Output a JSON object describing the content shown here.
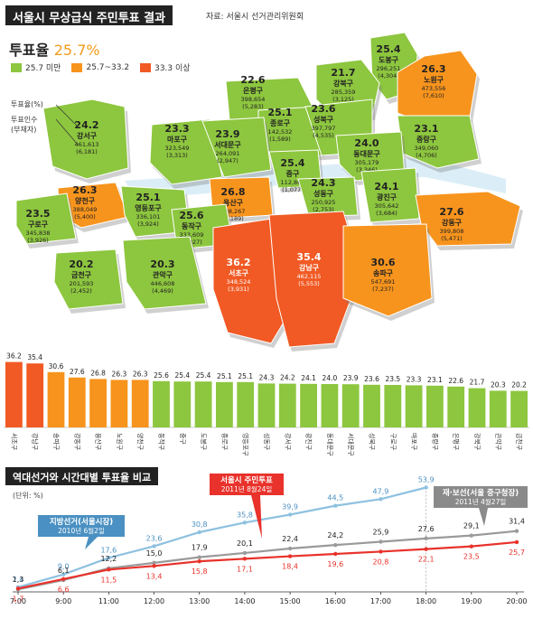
{
  "header": {
    "title": "서울시 무상급식 주민투표 결과",
    "source": "자료: 서울시 선거관리위원회"
  },
  "turnout": {
    "label": "투표율",
    "value": "25.7%"
  },
  "legend": [
    {
      "label": "25.7 미만",
      "color": "#8dc63f"
    },
    {
      "label": "25.7~33.2",
      "color": "#f7941d"
    },
    {
      "label": "33.3 이상",
      "color": "#f15a24"
    }
  ],
  "map_key": {
    "line1": "투표율(%)",
    "line2": "투표인수",
    "line3": "(부재자)"
  },
  "districts": [
    {
      "name": "도봉구",
      "rate": "25.4",
      "voters": "296,251",
      "absentee": "(4,304)"
    },
    {
      "name": "노원구",
      "rate": "26.3",
      "voters": "473,556",
      "absentee": "(7,610)"
    },
    {
      "name": "강북구",
      "rate": "21.7",
      "voters": "285,359",
      "absentee": "(3,125)"
    },
    {
      "name": "은평구",
      "rate": "22.6",
      "voters": "398,654",
      "absentee": "(5,283)"
    },
    {
      "name": "종로구",
      "rate": "25.1",
      "voters": "142,532",
      "absentee": "(1,589)"
    },
    {
      "name": "성북구",
      "rate": "23.6",
      "voters": "397,797",
      "absentee": "(4,535)"
    },
    {
      "name": "중랑구",
      "rate": "23.1",
      "voters": "349,060",
      "absentee": "(4,706)"
    },
    {
      "name": "동대문구",
      "rate": "24.0",
      "voters": "305,179",
      "absentee": "(3,346)"
    },
    {
      "name": "강서구",
      "rate": "24.2",
      "voters": "461,613",
      "absentee": "(6,181)"
    },
    {
      "name": "마포구",
      "rate": "23.3",
      "voters": "323,549",
      "absentee": "(3,313)"
    },
    {
      "name": "서대문구",
      "rate": "23.9",
      "voters": "264,091",
      "absentee": "(2,947)"
    },
    {
      "name": "중구",
      "rate": "25.4",
      "voters": "112,867",
      "absentee": "(1,077)"
    },
    {
      "name": "성동구",
      "rate": "24.3",
      "voters": "250,925",
      "absentee": "(2,753)"
    },
    {
      "name": "광진구",
      "rate": "24.1",
      "voters": "305,642",
      "absentee": "(3,684)"
    },
    {
      "name": "양천구",
      "rate": "26.3",
      "voters": "388,049",
      "absentee": "(5,400)"
    },
    {
      "name": "영등포구",
      "rate": "25.1",
      "voters": "336,101",
      "absentee": "(3,924)"
    },
    {
      "name": "용산구",
      "rate": "26.8",
      "voters": "208,267",
      "absentee": "(2,189)"
    },
    {
      "name": "구로구",
      "rate": "23.5",
      "voters": "345,838",
      "absentee": "(3,926)"
    },
    {
      "name": "동작구",
      "rate": "25.6",
      "voters": "333,609",
      "absentee": "(3,827)"
    },
    {
      "name": "강동구",
      "rate": "27.6",
      "voters": "399,808",
      "absentee": "(5,471)"
    },
    {
      "name": "금천구",
      "rate": "20.2",
      "voters": "201,593",
      "absentee": "(2,452)"
    },
    {
      "name": "관악구",
      "rate": "20.3",
      "voters": "446,608",
      "absentee": "(4,469)"
    },
    {
      "name": "서초구",
      "rate": "36.2",
      "voters": "348,524",
      "absentee": "(3,931)"
    },
    {
      "name": "강남구",
      "rate": "35.4",
      "voters": "462,115",
      "absentee": "(5,553)"
    },
    {
      "name": "송파구",
      "rate": "30.6",
      "voters": "547,691",
      "absentee": "(7,237)"
    }
  ],
  "lower": {
    "title": "역대선거와 시간대별 투표율 비교",
    "unit": "(단위: %)",
    "callout_red": {
      "line1": "서울시 주민투표",
      "line2": "2011년 8월24일"
    },
    "callout_blue": {
      "line1": "지방선거(서울시장)",
      "line2": "2010년 6월2일"
    },
    "callout_gray": {
      "line1": "재·보선(서울 중구청장)",
      "line2": "2011년 4월27일"
    }
  },
  "chart_data": [
    {
      "type": "bar",
      "categories": [
        "서초구",
        "강남구",
        "송파구",
        "강동구",
        "용산구",
        "노원구",
        "양천구",
        "동작구",
        "중구",
        "도봉구",
        "종로구",
        "영등포구",
        "성동구",
        "강서구",
        "광진구",
        "동대문구",
        "서대문구",
        "성북구",
        "구로구",
        "마포구",
        "중랑구",
        "은평구",
        "강북구",
        "관악구",
        "금천구"
      ],
      "values": [
        36.2,
        35.4,
        30.6,
        27.6,
        26.8,
        26.3,
        26.3,
        25.6,
        25.4,
        25.4,
        25.1,
        25.1,
        24.3,
        24.2,
        24.1,
        24.0,
        23.9,
        23.6,
        23.5,
        23.3,
        23.1,
        22.6,
        21.7,
        20.3,
        20.2
      ],
      "value_labels": [
        "36.2",
        "35.4",
        "30.6",
        "27.6",
        "26.8",
        "26.3",
        "26.3",
        "25.6",
        "25.4",
        "25.4",
        "25.1",
        "25.1",
        "24.3",
        "24.2",
        "24.1",
        "24.0",
        "23.9",
        "23.6",
        "23.5",
        "23.3",
        "23.1",
        "22.6",
        "21.7",
        "20.3",
        "20.2"
      ],
      "ylim": [
        0,
        40
      ],
      "colors": {
        "low": "#8dc63f",
        "mid": "#f7941d",
        "high": "#f15a24"
      }
    },
    {
      "type": "line",
      "x": [
        "7:00",
        "9:00",
        "11:00",
        "12:00",
        "13:00",
        "14:00",
        "15:00",
        "16:00",
        "17:00",
        "18:00",
        "19:00",
        "20:00"
      ],
      "series": [
        {
          "name": "지방선거(서울시장)",
          "color": "#8ec1e0",
          "values": [
            2.4,
            9.0,
            17.6,
            23.6,
            30.8,
            35.8,
            39.9,
            44.5,
            47.9,
            53.9,
            null,
            null
          ],
          "labels": [
            "2,4",
            "9,0",
            "17,6",
            "23,6",
            "30,8",
            "35,8",
            "39,9",
            "44,5",
            "47,9",
            "53,9",
            "",
            ""
          ]
        },
        {
          "name": "재·보선(서울 중구청장)",
          "color": "#9a9a9a",
          "values": [
            1.3,
            6.1,
            12.2,
            15.0,
            17.9,
            20.1,
            22.4,
            24.2,
            25.9,
            27.6,
            29.1,
            31.4
          ],
          "labels": [
            "1,3",
            "6,1",
            "12,2",
            "15,0",
            "17,9",
            "20,1",
            "22,4",
            "24,2",
            "25,9",
            "27,6",
            "29,1",
            "31,4"
          ]
        },
        {
          "name": "서울시 주민투표",
          "color": "#e8322b",
          "values": [
            1.7,
            6.6,
            11.5,
            13.4,
            15.8,
            17.1,
            18.4,
            19.6,
            20.8,
            22.1,
            23.5,
            25.7
          ],
          "labels": [
            "1,7",
            "6,6",
            "11,5",
            "13,4",
            "15,8",
            "17,1",
            "18,4",
            "19,6",
            "20,8",
            "22,1",
            "23,5",
            "25,7"
          ]
        }
      ],
      "ylim": [
        0,
        56
      ]
    }
  ]
}
